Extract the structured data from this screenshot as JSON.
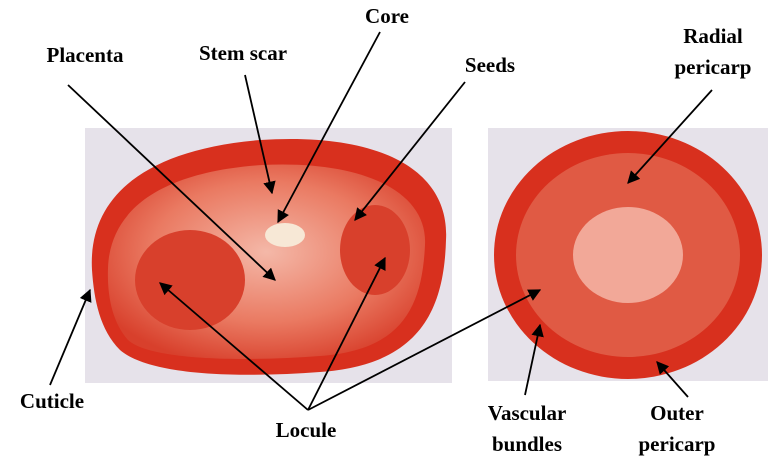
{
  "labels": [
    {
      "lines": [
        "Core"
      ]
    },
    {
      "lines": [
        "Placenta"
      ]
    },
    {
      "lines": [
        "Stem scar"
      ]
    },
    {
      "lines": [
        "Seeds"
      ]
    },
    {
      "lines": [
        "Radial",
        "pericarp"
      ]
    },
    {
      "lines": [
        "Cuticle"
      ]
    },
    {
      "lines": [
        "Locule"
      ]
    },
    {
      "lines": [
        "Vascular",
        "bundles"
      ]
    },
    {
      "lines": [
        "Outer",
        "pericarp"
      ]
    }
  ]
}
